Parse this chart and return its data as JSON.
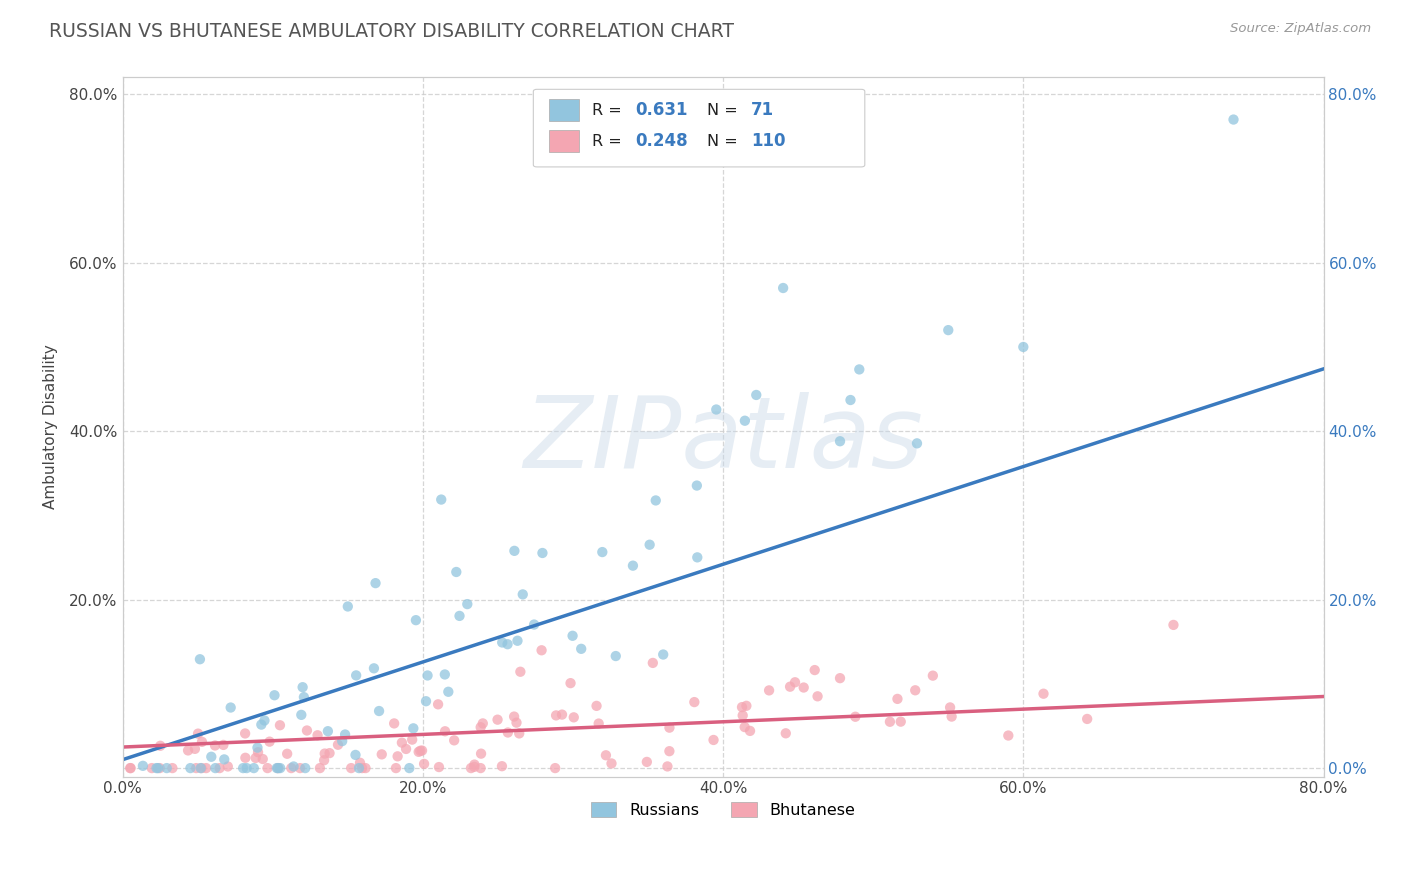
{
  "title": "RUSSIAN VS BHUTANESE AMBULATORY DISABILITY CORRELATION CHART",
  "source": "Source: ZipAtlas.com",
  "ylabel": "Ambulatory Disability",
  "xlim": [
    0.0,
    0.8
  ],
  "ylim": [
    -0.01,
    0.82
  ],
  "xtick_labels": [
    "0.0%",
    "20.0%",
    "40.0%",
    "60.0%",
    "80.0%"
  ],
  "xtick_vals": [
    0.0,
    0.2,
    0.4,
    0.6,
    0.8
  ],
  "ytick_labels": [
    "",
    "20.0%",
    "40.0%",
    "60.0%",
    "80.0%"
  ],
  "ytick_vals": [
    0.0,
    0.2,
    0.4,
    0.6,
    0.8
  ],
  "right_ytick_labels": [
    "0.0%",
    "20.0%",
    "40.0%",
    "60.0%",
    "80.0%"
  ],
  "right_ytick_vals": [
    0.0,
    0.2,
    0.4,
    0.6,
    0.8
  ],
  "russian_color": "#92c5de",
  "bhutanese_color": "#f4a6b2",
  "russian_line_color": "#3a7abf",
  "bhutanese_line_color": "#d95f7f",
  "background_color": "#ffffff",
  "grid_color": "#cccccc",
  "title_color": "#555555",
  "watermark_text": "ZIPatlas",
  "legend_R1": "0.631",
  "legend_N1": "71",
  "legend_R2": "0.248",
  "legend_N2": "110",
  "legend_label1": "Russians",
  "legend_label2": "Bhutanese"
}
